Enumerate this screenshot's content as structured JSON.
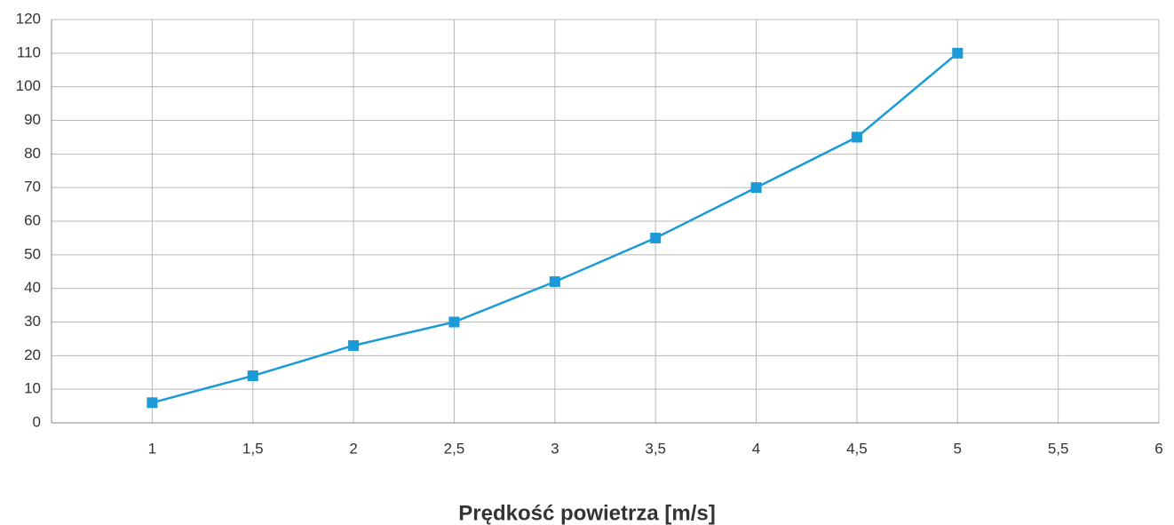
{
  "chart_data": {
    "type": "line",
    "x_label": "Prędkość powietrza [m/s]",
    "x": [
      1,
      1.5,
      2,
      2.5,
      3,
      3.5,
      4,
      4.5,
      5
    ],
    "series": [
      {
        "color": "#1a9bd7",
        "values": [
          6,
          14,
          23,
          30,
          42,
          55,
          70,
          85,
          110
        ]
      }
    ],
    "xlim": [
      0.5,
      6
    ],
    "xticks": [
      1,
      {
        "value": 1.5,
        "label": "1,5"
      },
      2,
      {
        "value": 2.5,
        "label": "2,5"
      },
      3,
      {
        "value": 3.5,
        "label": "3,5"
      },
      4,
      {
        "value": 4.5,
        "label": "4,5"
      },
      5,
      {
        "value": 5.5,
        "label": "5,5"
      },
      6
    ],
    "ylim": [
      0,
      120
    ],
    "yticks": [
      0,
      10,
      20,
      30,
      40,
      50,
      60,
      70,
      80,
      90,
      100,
      110,
      120
    ],
    "grid": true,
    "marker": "square"
  }
}
